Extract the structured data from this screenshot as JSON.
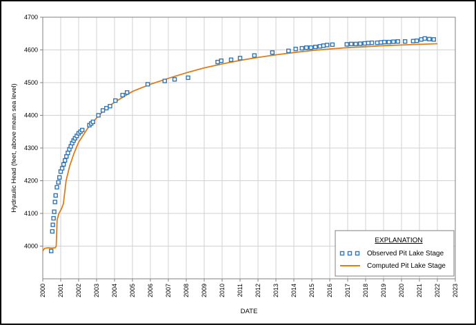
{
  "colors": {
    "observed": "#2e75b6",
    "computed": "#e07b16",
    "grid": "#d0d0d0",
    "axis": "#7f7f7f"
  },
  "chart_data": {
    "type": "scatter",
    "xlabel": "DATE",
    "ylabel": "Hydraulic Head (feet, above mean sea level)",
    "xlim": [
      2000,
      2023
    ],
    "ylim": [
      3900,
      4700
    ],
    "x_ticks": [
      "2000",
      "2001",
      "2002",
      "2003",
      "2004",
      "2005",
      "2006",
      "2007",
      "2008",
      "2009",
      "2010",
      "2011",
      "2012",
      "2013",
      "2014",
      "2015",
      "2016",
      "2017",
      "2018",
      "2019",
      "2020",
      "2021",
      "2022",
      "2023"
    ],
    "y_ticks": [
      "4000",
      "4100",
      "4200",
      "4300",
      "4400",
      "4500",
      "4600",
      "4700"
    ],
    "grid": true,
    "legend": {
      "placement": "bottom-right",
      "title": "EXPLANATION",
      "observed_label": "Observed Pit Lake Stage",
      "computed_label": "Computed Pit Lake Stage"
    },
    "series": [
      {
        "name": "Observed Pit Lake Stage",
        "marker": "square",
        "points": [
          [
            2000.47,
            3985
          ],
          [
            2000.53,
            4045
          ],
          [
            2000.56,
            4065
          ],
          [
            2000.6,
            4085
          ],
          [
            2000.64,
            4105
          ],
          [
            2000.68,
            4135
          ],
          [
            2000.72,
            4155
          ],
          [
            2000.79,
            4180
          ],
          [
            2000.87,
            4195
          ],
          [
            2000.93,
            4210
          ],
          [
            2001.0,
            4228
          ],
          [
            2001.08,
            4238
          ],
          [
            2001.16,
            4250
          ],
          [
            2001.24,
            4262
          ],
          [
            2001.32,
            4274
          ],
          [
            2001.4,
            4285
          ],
          [
            2001.48,
            4296
          ],
          [
            2001.56,
            4305
          ],
          [
            2001.64,
            4315
          ],
          [
            2001.72,
            4323
          ],
          [
            2001.8,
            4330
          ],
          [
            2001.9,
            4337
          ],
          [
            2002.0,
            4345
          ],
          [
            2002.1,
            4350
          ],
          [
            2002.2,
            4355
          ],
          [
            2002.6,
            4370
          ],
          [
            2002.7,
            4375
          ],
          [
            2002.8,
            4380
          ],
          [
            2003.1,
            4400
          ],
          [
            2003.35,
            4415
          ],
          [
            2003.55,
            4422
          ],
          [
            2003.75,
            4428
          ],
          [
            2004.05,
            4445
          ],
          [
            2004.45,
            4462
          ],
          [
            2004.7,
            4470
          ],
          [
            2005.85,
            4495
          ],
          [
            2006.8,
            4505
          ],
          [
            2007.35,
            4510
          ],
          [
            2008.1,
            4515
          ],
          [
            2009.75,
            4563
          ],
          [
            2009.95,
            4567
          ],
          [
            2010.5,
            4570
          ],
          [
            2011.0,
            4575
          ],
          [
            2011.8,
            4583
          ],
          [
            2012.8,
            4592
          ],
          [
            2013.7,
            4597
          ],
          [
            2014.1,
            4603
          ],
          [
            2014.45,
            4605
          ],
          [
            2014.7,
            4607
          ],
          [
            2014.95,
            4607
          ],
          [
            2015.2,
            4609
          ],
          [
            2015.45,
            4611
          ],
          [
            2015.65,
            4613
          ],
          [
            2015.85,
            4615
          ],
          [
            2016.15,
            4616
          ],
          [
            2016.95,
            4617
          ],
          [
            2017.2,
            4618
          ],
          [
            2017.45,
            4618
          ],
          [
            2017.7,
            4619
          ],
          [
            2017.95,
            4620
          ],
          [
            2018.15,
            4621
          ],
          [
            2018.35,
            4622
          ],
          [
            2018.65,
            4622
          ],
          [
            2018.85,
            4623
          ],
          [
            2019.05,
            4624
          ],
          [
            2019.3,
            4624
          ],
          [
            2019.55,
            4625
          ],
          [
            2019.8,
            4626
          ],
          [
            2020.2,
            4626
          ],
          [
            2020.65,
            4627
          ],
          [
            2020.85,
            4628
          ],
          [
            2021.1,
            4632
          ],
          [
            2021.3,
            4635
          ],
          [
            2021.55,
            4633
          ],
          [
            2021.8,
            4632
          ]
        ]
      },
      {
        "name": "Computed Pit Lake Stage",
        "line": true,
        "points": [
          [
            2000.0,
            3985
          ],
          [
            2000.1,
            3993
          ],
          [
            2000.3,
            3995
          ],
          [
            2000.5,
            3994
          ],
          [
            2000.7,
            3995
          ],
          [
            2000.75,
            4000
          ],
          [
            2000.8,
            4080
          ],
          [
            2000.85,
            4090
          ],
          [
            2000.9,
            4100
          ],
          [
            2001.05,
            4115
          ],
          [
            2001.15,
            4130
          ],
          [
            2001.3,
            4200
          ],
          [
            2001.5,
            4245
          ],
          [
            2001.75,
            4285
          ],
          [
            2002.0,
            4318
          ],
          [
            2002.5,
            4360
          ],
          [
            2003.0,
            4392
          ],
          [
            2003.5,
            4420
          ],
          [
            2004.0,
            4440
          ],
          [
            2005.0,
            4473
          ],
          [
            2006.0,
            4495
          ],
          [
            2007.0,
            4513
          ],
          [
            2008.0,
            4530
          ],
          [
            2009.0,
            4545
          ],
          [
            2010.0,
            4557
          ],
          [
            2011.0,
            4568
          ],
          [
            2012.0,
            4577
          ],
          [
            2013.0,
            4585
          ],
          [
            2014.0,
            4592
          ],
          [
            2015.0,
            4598
          ],
          [
            2016.0,
            4603
          ],
          [
            2017.0,
            4607
          ],
          [
            2018.0,
            4610
          ],
          [
            2019.0,
            4613
          ],
          [
            2020.0,
            4615
          ],
          [
            2021.0,
            4617
          ],
          [
            2022.0,
            4619
          ]
        ]
      }
    ]
  }
}
